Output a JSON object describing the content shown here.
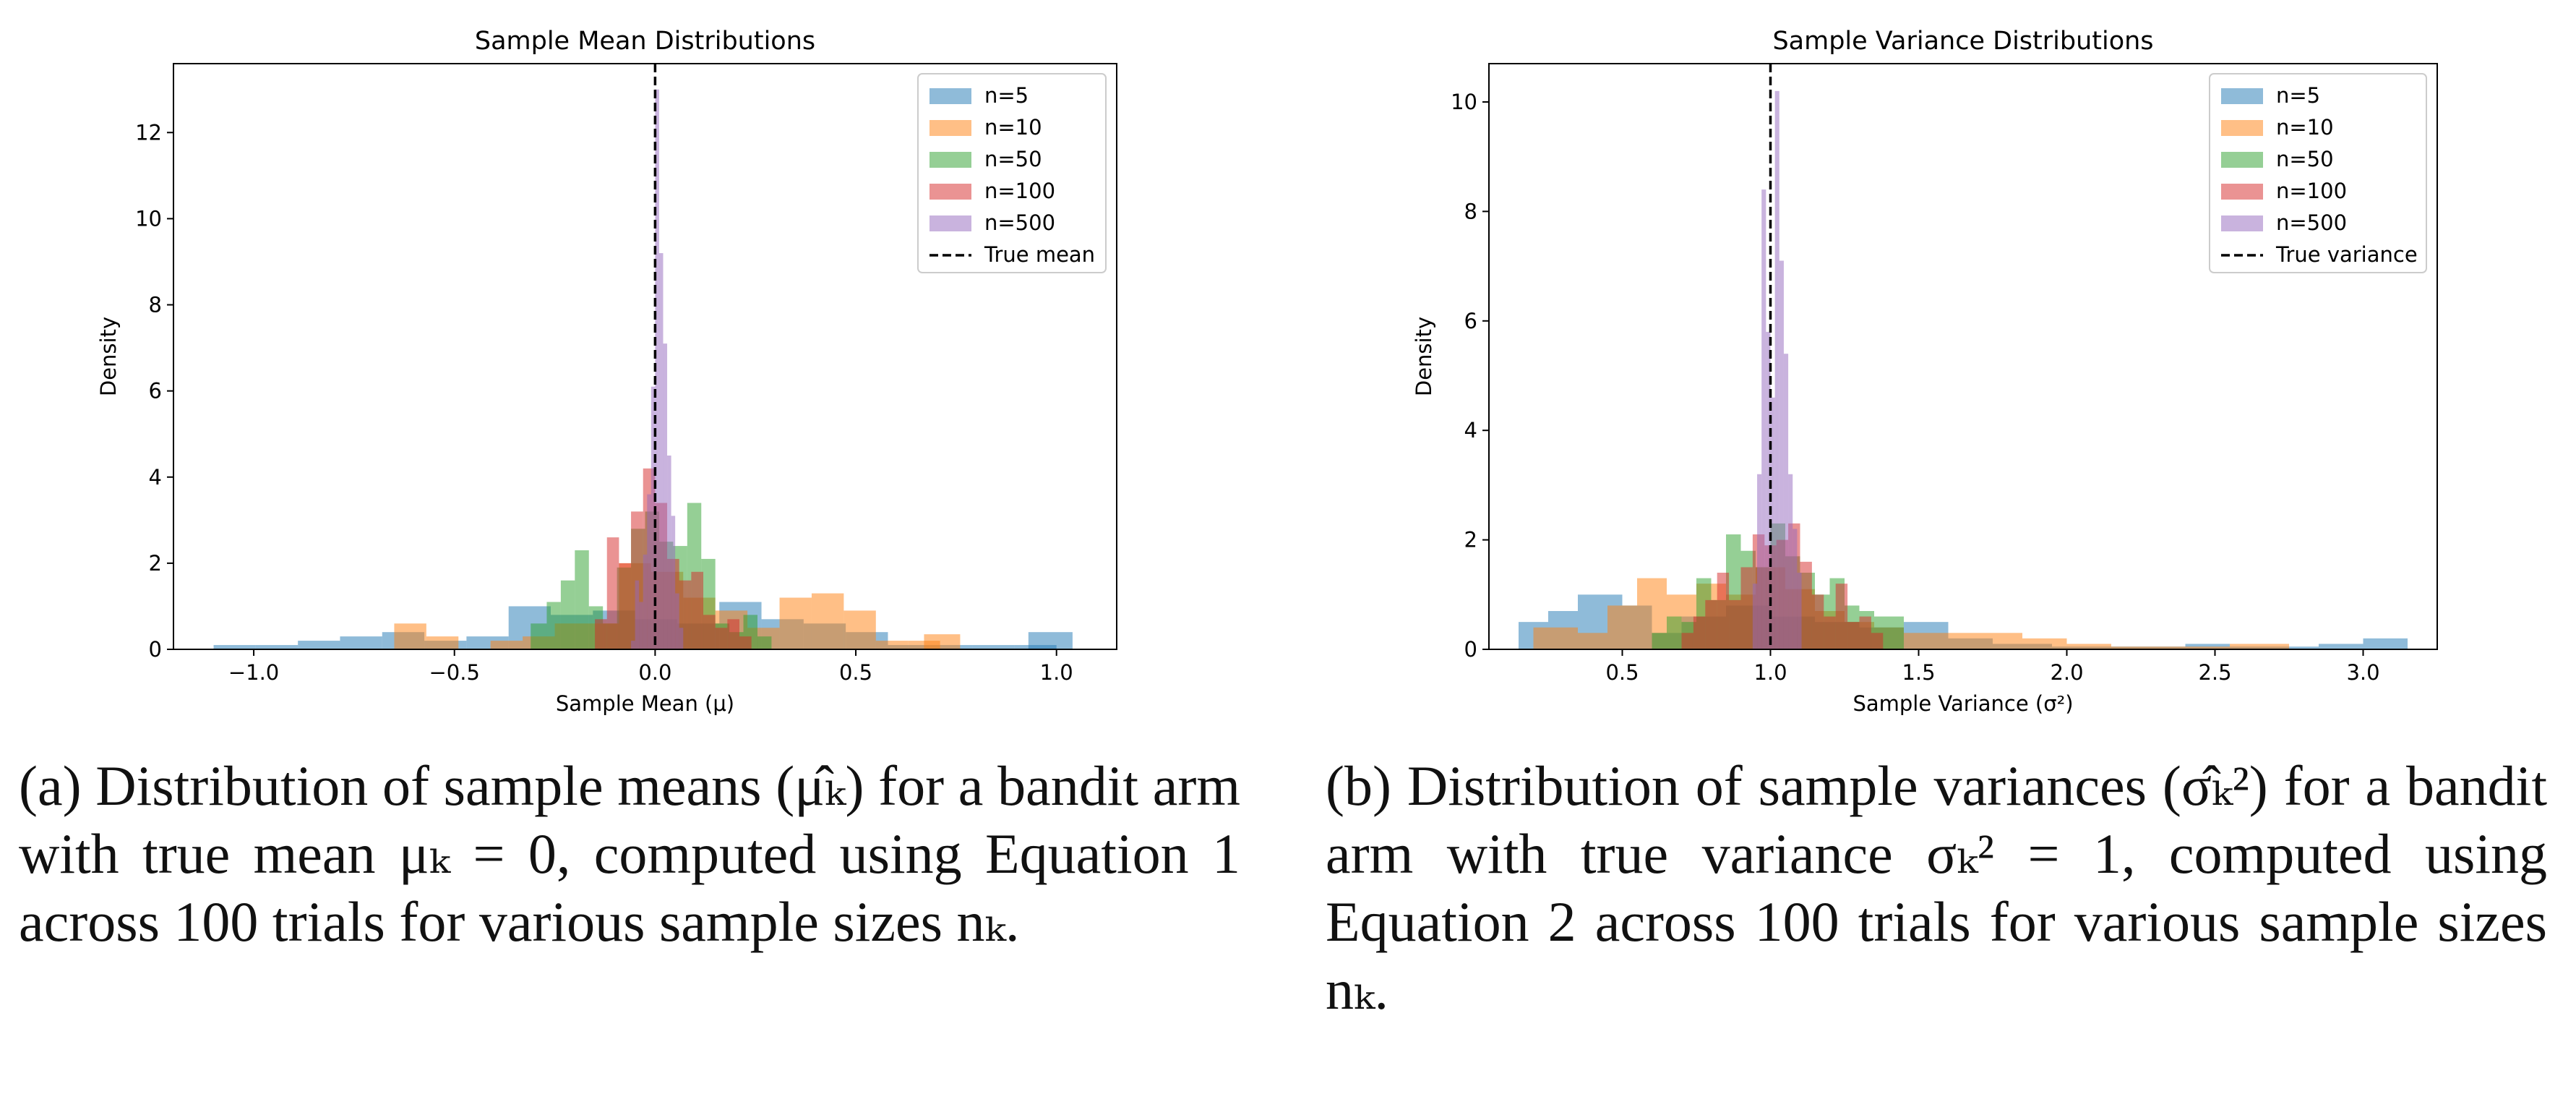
{
  "chart_data": [
    {
      "type": "bar",
      "title": "Sample Mean Distributions",
      "xlabel": "Sample Mean (μ)",
      "ylabel": "Density",
      "xlim": [
        -1.2,
        1.15
      ],
      "ylim": [
        0,
        13.6
      ],
      "xticks": [
        -1.0,
        -0.5,
        0.0,
        0.5,
        1.0
      ],
      "xtick_labels": [
        "−1.0",
        "−0.5",
        "0.0",
        "0.5",
        "1.0"
      ],
      "yticks": [
        0,
        2,
        4,
        6,
        8,
        10,
        12
      ],
      "ytick_labels": [
        "0",
        "2",
        "4",
        "6",
        "8",
        "10",
        "12"
      ],
      "reference_line": {
        "x": 0.0,
        "label": "True mean",
        "style": "dashed",
        "color": "#000000"
      },
      "legend_position": "top-right",
      "series": [
        {
          "name": "n=5",
          "color": "#1f77b4",
          "bins": [
            [
              -1.1,
              -0.995,
              0.1
            ],
            [
              -0.995,
              -0.89,
              0.1
            ],
            [
              -0.89,
              -0.785,
              0.2
            ],
            [
              -0.785,
              -0.68,
              0.3
            ],
            [
              -0.68,
              -0.575,
              0.4
            ],
            [
              -0.575,
              -0.47,
              0.2
            ],
            [
              -0.47,
              -0.365,
              0.3
            ],
            [
              -0.365,
              -0.26,
              1.0
            ],
            [
              -0.26,
              -0.155,
              0.8
            ],
            [
              -0.155,
              -0.05,
              0.9
            ],
            [
              -0.05,
              0.055,
              0.7
            ],
            [
              0.055,
              0.16,
              0.6
            ],
            [
              0.16,
              0.265,
              1.1
            ],
            [
              0.265,
              0.37,
              0.7
            ],
            [
              0.37,
              0.475,
              0.6
            ],
            [
              0.475,
              0.58,
              0.4
            ],
            [
              0.58,
              0.685,
              0.1
            ],
            [
              0.685,
              0.79,
              0.1
            ],
            [
              0.79,
              0.895,
              0.1
            ],
            [
              0.895,
              1.0,
              0.1
            ],
            [
              0.93,
              1.04,
              0.4
            ]
          ]
        },
        {
          "name": "n=10",
          "color": "#ff7f0e",
          "bins": [
            [
              -0.65,
              -0.57,
              0.6
            ],
            [
              -0.57,
              -0.49,
              0.3
            ],
            [
              -0.49,
              -0.41,
              0.0
            ],
            [
              -0.41,
              -0.33,
              0.2
            ],
            [
              -0.33,
              -0.25,
              0.3
            ],
            [
              -0.25,
              -0.17,
              0.6
            ],
            [
              -0.17,
              -0.09,
              0.6
            ],
            [
              -0.09,
              -0.01,
              2.0
            ],
            [
              -0.01,
              0.07,
              1.8
            ],
            [
              0.07,
              0.15,
              1.2
            ],
            [
              0.15,
              0.23,
              0.9
            ],
            [
              0.23,
              0.31,
              0.5
            ],
            [
              0.31,
              0.39,
              1.2
            ],
            [
              0.39,
              0.47,
              1.3
            ],
            [
              0.47,
              0.55,
              0.9
            ],
            [
              0.55,
              0.63,
              0.2
            ],
            [
              0.63,
              0.71,
              0.2
            ],
            [
              0.67,
              0.76,
              0.35
            ]
          ]
        },
        {
          "name": "n=50",
          "color": "#2ca02c",
          "bins": [
            [
              -0.31,
              -0.27,
              0.6
            ],
            [
              -0.27,
              -0.235,
              1.1
            ],
            [
              -0.235,
              -0.2,
              1.6
            ],
            [
              -0.2,
              -0.165,
              2.3
            ],
            [
              -0.165,
              -0.13,
              1.0
            ],
            [
              -0.13,
              -0.095,
              0.6
            ],
            [
              -0.095,
              -0.06,
              1.9
            ],
            [
              -0.06,
              -0.025,
              2.8
            ],
            [
              -0.025,
              0.01,
              3.2
            ],
            [
              0.01,
              0.045,
              2.5
            ],
            [
              0.045,
              0.08,
              2.4
            ],
            [
              0.08,
              0.115,
              3.4
            ],
            [
              0.115,
              0.15,
              2.1
            ],
            [
              0.15,
              0.185,
              0.6
            ],
            [
              0.185,
              0.22,
              0.4
            ],
            [
              0.22,
              0.255,
              0.8
            ],
            [
              0.255,
              0.29,
              0.3
            ]
          ]
        },
        {
          "name": "n=100",
          "color": "#d62728",
          "bins": [
            [
              -0.15,
              -0.12,
              0.7
            ],
            [
              -0.12,
              -0.09,
              2.6
            ],
            [
              -0.09,
              -0.06,
              2.0
            ],
            [
              -0.06,
              -0.03,
              3.2
            ],
            [
              -0.03,
              0.0,
              4.2
            ],
            [
              0.0,
              0.03,
              3.4
            ],
            [
              0.03,
              0.06,
              2.1
            ],
            [
              0.06,
              0.09,
              1.6
            ],
            [
              0.09,
              0.12,
              1.8
            ],
            [
              0.12,
              0.15,
              0.8
            ],
            [
              0.15,
              0.18,
              0.5
            ],
            [
              0.18,
              0.21,
              0.7
            ],
            [
              0.21,
              0.24,
              0.3
            ]
          ]
        },
        {
          "name": "n=500",
          "color": "#9467bd",
          "bins": [
            [
              -0.06,
              -0.05,
              0.2
            ],
            [
              -0.05,
              -0.04,
              1.6
            ],
            [
              -0.04,
              -0.03,
              1.1
            ],
            [
              -0.03,
              -0.02,
              2.2
            ],
            [
              -0.02,
              -0.01,
              3.6
            ],
            [
              -0.01,
              0.0,
              6.1
            ],
            [
              0.0,
              0.01,
              13.0
            ],
            [
              0.01,
              0.02,
              9.2
            ],
            [
              0.02,
              0.03,
              7.1
            ],
            [
              0.03,
              0.04,
              4.5
            ],
            [
              0.04,
              0.05,
              3.1
            ],
            [
              0.05,
              0.06,
              1.3
            ],
            [
              0.06,
              0.07,
              0.5
            ]
          ]
        }
      ]
    },
    {
      "type": "bar",
      "title": "Sample Variance Distributions",
      "xlabel": "Sample Variance (σ²)",
      "ylabel": "Density",
      "xlim": [
        0.05,
        3.25
      ],
      "ylim": [
        0,
        10.7
      ],
      "xticks": [
        0.5,
        1.0,
        1.5,
        2.0,
        2.5,
        3.0
      ],
      "xtick_labels": [
        "0.5",
        "1.0",
        "1.5",
        "2.0",
        "2.5",
        "3.0"
      ],
      "yticks": [
        0,
        2,
        4,
        6,
        8,
        10
      ],
      "ytick_labels": [
        "0",
        "2",
        "4",
        "6",
        "8",
        "10"
      ],
      "reference_line": {
        "x": 1.0,
        "label": "True variance",
        "style": "dashed",
        "color": "#000000"
      },
      "legend_position": "top-right",
      "series": [
        {
          "name": "n=5",
          "color": "#1f77b4",
          "bins": [
            [
              0.15,
              0.25,
              0.5
            ],
            [
              0.25,
              0.35,
              0.7
            ],
            [
              0.35,
              0.5,
              1.0
            ],
            [
              0.5,
              0.6,
              0.8
            ],
            [
              0.6,
              0.7,
              0.3
            ],
            [
              0.7,
              0.85,
              0.6
            ],
            [
              0.85,
              1.0,
              0.8
            ],
            [
              1.0,
              1.15,
              0.6
            ],
            [
              1.15,
              1.3,
              0.5
            ],
            [
              1.3,
              1.45,
              0.4
            ],
            [
              1.45,
              1.6,
              0.5
            ],
            [
              1.6,
              1.75,
              0.2
            ],
            [
              1.75,
              1.95,
              0.1
            ],
            [
              1.95,
              2.1,
              0.05
            ],
            [
              2.1,
              2.25,
              0.05
            ],
            [
              2.25,
              2.4,
              0.05
            ],
            [
              2.4,
              2.55,
              0.1
            ],
            [
              2.55,
              2.7,
              0.05
            ],
            [
              2.7,
              2.85,
              0.05
            ],
            [
              2.85,
              3.0,
              0.1
            ],
            [
              3.0,
              3.15,
              0.2
            ]
          ]
        },
        {
          "name": "n=10",
          "color": "#ff7f0e",
          "bins": [
            [
              0.2,
              0.35,
              0.4
            ],
            [
              0.35,
              0.45,
              0.3
            ],
            [
              0.45,
              0.55,
              0.8
            ],
            [
              0.55,
              0.65,
              1.3
            ],
            [
              0.65,
              0.75,
              1.0
            ],
            [
              0.75,
              0.85,
              1.2
            ],
            [
              0.85,
              0.95,
              1.0
            ],
            [
              0.95,
              1.05,
              1.5
            ],
            [
              1.05,
              1.15,
              1.1
            ],
            [
              1.15,
              1.25,
              0.7
            ],
            [
              1.25,
              1.35,
              0.5
            ],
            [
              1.35,
              1.45,
              0.4
            ],
            [
              1.45,
              1.55,
              0.3
            ],
            [
              1.55,
              1.7,
              0.3
            ],
            [
              1.7,
              1.85,
              0.3
            ],
            [
              1.85,
              2.0,
              0.2
            ],
            [
              2.0,
              2.15,
              0.1
            ],
            [
              2.15,
              2.3,
              0.05
            ],
            [
              2.3,
              2.55,
              0.05
            ],
            [
              2.55,
              2.75,
              0.1
            ]
          ]
        },
        {
          "name": "n=50",
          "color": "#2ca02c",
          "bins": [
            [
              0.6,
              0.65,
              0.3
            ],
            [
              0.65,
              0.7,
              0.6
            ],
            [
              0.7,
              0.75,
              0.5
            ],
            [
              0.75,
              0.8,
              1.3
            ],
            [
              0.8,
              0.85,
              0.9
            ],
            [
              0.85,
              0.9,
              2.1
            ],
            [
              0.9,
              0.95,
              1.8
            ],
            [
              0.95,
              1.0,
              1.5
            ],
            [
              1.0,
              1.05,
              2.3
            ],
            [
              1.05,
              1.1,
              1.7
            ],
            [
              1.1,
              1.15,
              1.4
            ],
            [
              1.15,
              1.2,
              1.0
            ],
            [
              1.2,
              1.25,
              1.3
            ],
            [
              1.25,
              1.3,
              0.8
            ],
            [
              1.3,
              1.35,
              0.7
            ],
            [
              1.35,
              1.4,
              0.6
            ],
            [
              1.4,
              1.45,
              0.6
            ]
          ]
        },
        {
          "name": "n=100",
          "color": "#d62728",
          "bins": [
            [
              0.7,
              0.74,
              0.3
            ],
            [
              0.74,
              0.78,
              0.6
            ],
            [
              0.78,
              0.82,
              0.9
            ],
            [
              0.82,
              0.86,
              1.4
            ],
            [
              0.86,
              0.9,
              0.9
            ],
            [
              0.9,
              0.94,
              1.5
            ],
            [
              0.94,
              0.98,
              2.1
            ],
            [
              0.98,
              1.02,
              1.9
            ],
            [
              1.02,
              1.06,
              2.0
            ],
            [
              1.06,
              1.1,
              2.3
            ],
            [
              1.1,
              1.14,
              1.6
            ],
            [
              1.14,
              1.18,
              1.0
            ],
            [
              1.18,
              1.22,
              0.6
            ],
            [
              1.22,
              1.26,
              1.2
            ],
            [
              1.26,
              1.3,
              0.5
            ],
            [
              1.3,
              1.34,
              0.6
            ],
            [
              1.34,
              1.38,
              0.3
            ]
          ]
        },
        {
          "name": "n=500",
          "color": "#9467bd",
          "bins": [
            [
              0.94,
              0.955,
              1.2
            ],
            [
              0.955,
              0.97,
              3.2
            ],
            [
              0.97,
              0.985,
              8.4
            ],
            [
              0.985,
              1.0,
              5.8
            ],
            [
              1.0,
              1.015,
              4.6
            ],
            [
              1.015,
              1.03,
              10.2
            ],
            [
              1.03,
              1.045,
              7.1
            ],
            [
              1.045,
              1.06,
              5.4
            ],
            [
              1.06,
              1.075,
              3.2
            ],
            [
              1.075,
              1.09,
              2.2
            ],
            [
              1.09,
              1.105,
              1.4
            ]
          ]
        }
      ]
    }
  ],
  "captions": [
    "(a) Distribution of sample means (μ̂ₖ) for a bandit arm with true mean μₖ = 0, computed using Equation 1 across 100 trials for various sample sizes nₖ.",
    "(b) Distribution of sample variances (σ̂ₖ²) for a bandit arm with true variance σₖ² = 1, computed using Equation 2 across 100 trials for various sample sizes nₖ."
  ]
}
